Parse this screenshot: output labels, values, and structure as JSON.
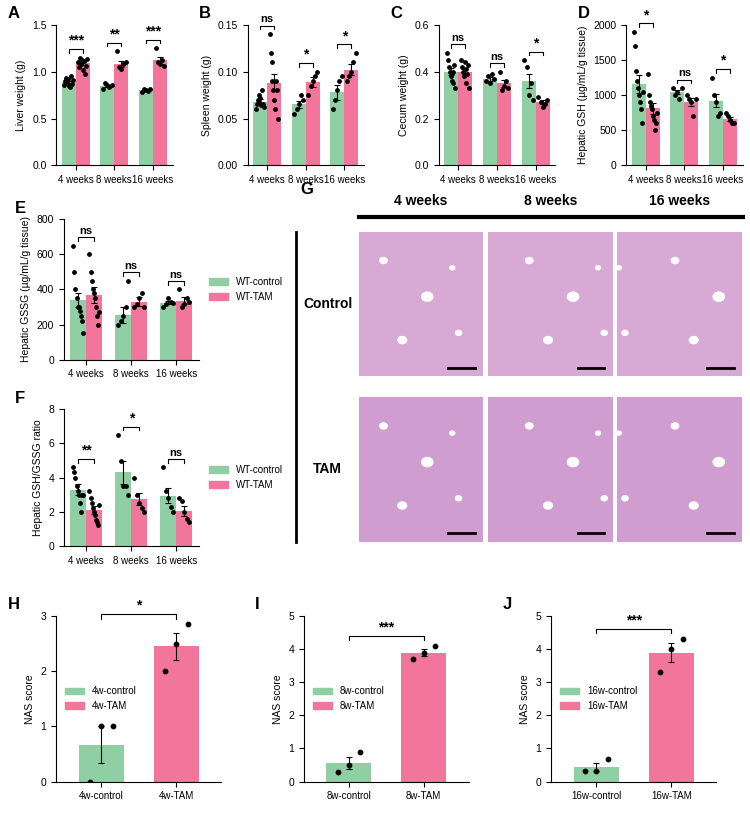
{
  "chart_data": [
    {
      "type": "bar",
      "title": "A",
      "y_label": "Liver weight (g)",
      "categories": [
        "4 weeks",
        "8 weeks",
        "16 weeks"
      ],
      "ylim": [
        0,
        1.5
      ],
      "yticks": [
        {
          "value": 0,
          "label": "0.0"
        },
        0.5,
        {
          "value": 1,
          "label": "1.0"
        },
        1.5
      ],
      "significance": [
        "***",
        "**",
        "***"
      ],
      "series": [
        {
          "color": "#8fcfa3",
          "values": [
            0.89,
            0.85,
            0.8
          ],
          "errors": [
            0.012,
            0.011,
            0.008
          ],
          "points": [
            [
              0.86,
              0.9,
              0.93,
              0.88,
              0.92,
              0.85,
              0.84,
              0.95,
              0.87,
              0.91
            ],
            [
              0.82,
              0.88,
              0.86,
              0.84,
              0.86
            ],
            [
              0.78,
              0.82,
              0.8,
              0.79,
              0.81
            ]
          ]
        },
        {
          "color": "#f2769c",
          "values": [
            1.09,
            1.08,
            1.12
          ],
          "errors": [
            0.015,
            0.035,
            0.035
          ],
          "points": [
            [
              1.1,
              1.05,
              1.15,
              1.08,
              1.12,
              1.02,
              1.11,
              0.98,
              1.06,
              1.13
            ],
            [
              1.22,
              1.05,
              1.03,
              1.08,
              1.1
            ],
            [
              1.25,
              1.1,
              1.08,
              1.12,
              1.06
            ]
          ]
        }
      ]
    },
    {
      "type": "bar",
      "title": "B",
      "y_label": "Spleen weight (g)",
      "categories": [
        "4 weeks",
        "8 weeks",
        "16 weeks"
      ],
      "ylim": [
        0,
        0.15
      ],
      "yticks": [
        {
          "value": 0,
          "label": "0.00"
        },
        0.05,
        {
          "value": 0.1,
          "label": "0.10"
        },
        0.15
      ],
      "significance": [
        "ns",
        "*",
        "*"
      ],
      "series": [
        {
          "color": "#8fcfa3",
          "values": [
            0.068,
            0.065,
            0.078
          ],
          "errors": [
            0.003,
            0.004,
            0.008
          ],
          "points": [
            [
              0.06,
              0.065,
              0.07,
              0.075,
              0.068,
              0.072,
              0.064,
              0.08,
              0.066,
              0.062
            ],
            [
              0.055,
              0.06,
              0.065,
              0.075,
              0.07
            ],
            [
              0.06,
              0.07,
              0.08,
              0.09,
              0.095
            ]
          ]
        },
        {
          "color": "#f2769c",
          "values": [
            0.088,
            0.089,
            0.102
          ],
          "errors": [
            0.009,
            0.005,
            0.006
          ],
          "points": [
            [
              0.14,
              0.12,
              0.11,
              0.09,
              0.08,
              0.07,
              0.06,
              0.09,
              0.08,
              0.05
            ],
            [
              0.075,
              0.085,
              0.09,
              0.095,
              0.1
            ],
            [
              0.09,
              0.095,
              0.1,
              0.11,
              0.12
            ]
          ]
        }
      ]
    },
    {
      "type": "bar",
      "title": "C",
      "y_label": "Cecum weight (g)",
      "categories": [
        "4 weeks",
        "8 weeks",
        "16 weeks"
      ],
      "ylim": [
        0,
        0.6
      ],
      "yticks": [
        {
          "value": 0,
          "label": "0.0"
        },
        0.2,
        0.4,
        0.6
      ],
      "significance": [
        "ns",
        "ns",
        "*"
      ],
      "series": [
        {
          "color": "#8fcfa3",
          "values": [
            0.4,
            0.37,
            0.36
          ],
          "errors": [
            0.015,
            0.008,
            0.03
          ],
          "points": [
            [
              0.48,
              0.45,
              0.42,
              0.4,
              0.38,
              0.36,
              0.35,
              0.4,
              0.43,
              0.33
            ],
            [
              0.36,
              0.38,
              0.35,
              0.39,
              0.37
            ],
            [
              0.45,
              0.42,
              0.3,
              0.35,
              0.28
            ]
          ]
        },
        {
          "color": "#f2769c",
          "values": [
            0.4,
            0.35,
            0.27
          ],
          "errors": [
            0.013,
            0.015,
            0.008
          ],
          "points": [
            [
              0.45,
              0.42,
              0.4,
              0.38,
              0.44,
              0.35,
              0.41,
              0.39,
              0.43,
              0.33
            ],
            [
              0.4,
              0.32,
              0.34,
              0.36,
              0.33
            ],
            [
              0.29,
              0.27,
              0.25,
              0.26,
              0.28
            ]
          ]
        }
      ]
    },
    {
      "type": "bar",
      "title": "D",
      "y_label": "Hepatic GSH (µg/mL/g tissue)",
      "categories": [
        "4 weeks",
        "8 weeks",
        "16 weeks"
      ],
      "ylim": [
        0,
        2000
      ],
      "yticks": [
        0,
        500,
        1000,
        1500,
        2000
      ],
      "significance": [
        "*",
        "ns",
        "*"
      ],
      "series": [
        {
          "color": "#8fcfa3",
          "values": [
            1160,
            1040,
            920
          ],
          "errors": [
            130,
            30,
            95
          ],
          "points": [
            [
              1900,
              1700,
              1350,
              1200,
              1100,
              1000,
              900,
              800,
              600,
              1050
            ],
            [
              1100,
              1000,
              1050,
              950,
              1100
            ],
            [
              1250,
              1000,
              900,
              700,
              750
            ]
          ]
        },
        {
          "color": "#f2769c",
          "values": [
            810,
            900,
            660
          ],
          "errors": [
            80,
            55,
            35
          ],
          "points": [
            [
              1300,
              1000,
              900,
              850,
              800,
              700,
              650,
              500,
              600,
              750
            ],
            [
              1000,
              950,
              900,
              700,
              950
            ],
            [
              750,
              700,
              650,
              600,
              600
            ]
          ]
        }
      ]
    },
    {
      "type": "bar",
      "title": "E",
      "y_label": "Hepatic GSSG (µg/mL/g tissue)",
      "categories": [
        "4 weeks",
        "8 weeks",
        "16 weeks"
      ],
      "ylim": [
        0,
        800
      ],
      "yticks": [
        0,
        200,
        400,
        600,
        800
      ],
      "significance": [
        "ns",
        "ns",
        "ns"
      ],
      "legend": "right",
      "series": [
        {
          "name": "WT-control",
          "color": "#8fcfa3",
          "values": [
            340,
            255,
            325
          ],
          "errors": [
            40,
            45,
            10
          ],
          "points": [
            [
              650,
              500,
              400,
              350,
              300,
              300,
              280,
              250,
              220,
              150
            ],
            [
              200,
              220,
              250,
              300,
              450
            ],
            [
              300,
              320,
              350,
              330,
              325
            ]
          ]
        },
        {
          "name": "WT-TAM",
          "color": "#f2769c",
          "values": [
            370,
            330,
            335
          ],
          "errors": [
            45,
            25,
            20
          ],
          "points": [
            [
              600,
              500,
              450,
              400,
              380,
              350,
              300,
              250,
              200,
              270
            ],
            [
              300,
              320,
              350,
              380,
              300
            ],
            [
              400,
              300,
              320,
              350,
              330
            ]
          ]
        }
      ]
    },
    {
      "type": "bar",
      "title": "F",
      "y_label": "Hepatic GSH/GSSG ratio",
      "categories": [
        "4 weeks",
        "8 weeks",
        "16 weeks"
      ],
      "ylim": [
        0,
        8
      ],
      "yticks": [
        0,
        2,
        4,
        6,
        8
      ],
      "significance": [
        "**",
        "*",
        "ns"
      ],
      "legend": "right",
      "series": [
        {
          "name": "WT-control",
          "color": "#8fcfa3",
          "values": [
            3.3,
            4.3,
            2.95
          ],
          "errors": [
            0.3,
            0.65,
            0.45
          ],
          "points": [
            [
              4.6,
              4.3,
              4.0,
              3.5,
              3.2,
              3.0,
              2.5,
              2.0,
              3.0,
              3.0
            ],
            [
              6.5,
              5.0,
              3.5,
              3.5,
              3.0
            ],
            [
              4.6,
              3.2,
              2.8,
              2.3,
              2.0
            ]
          ]
        },
        {
          "name": "WT-TAM",
          "color": "#f2769c",
          "values": [
            2.1,
            2.75,
            2.05
          ],
          "errors": [
            0.25,
            0.35,
            0.3
          ],
          "points": [
            [
              3.2,
              2.8,
              2.5,
              2.2,
              2.0,
              1.8,
              1.5,
              1.4,
              1.2,
              2.4
            ],
            [
              4.0,
              3.0,
              2.5,
              2.2,
              2.0
            ],
            [
              2.8,
              2.6,
              2.0,
              1.6,
              1.4
            ]
          ]
        }
      ]
    },
    {
      "type": "bar",
      "title": "H",
      "y_label": "NAS score",
      "categories": [
        "4w-control",
        "4w-TAM"
      ],
      "colors": [
        "#8fcfa3",
        "#f2769c"
      ],
      "values": [
        0.67,
        2.45
      ],
      "errors": [
        0.33,
        0.25
      ],
      "points": [
        [
          0,
          1,
          1
        ],
        [
          2.0,
          2.5,
          2.85
        ]
      ],
      "ylim": [
        0,
        3
      ],
      "yticks": [
        0,
        1,
        2,
        3
      ],
      "significance": [
        "*"
      ],
      "legend": "center left"
    },
    {
      "type": "bar",
      "title": "I",
      "y_label": "NAS score",
      "categories": [
        "8w-control",
        "8w-TAM"
      ],
      "colors": [
        "#8fcfa3",
        "#f2769c"
      ],
      "values": [
        0.55,
        3.9
      ],
      "errors": [
        0.18,
        0.1
      ],
      "points": [
        [
          0.3,
          0.5,
          0.9
        ],
        [
          3.7,
          3.9,
          4.1
        ]
      ],
      "ylim": [
        0,
        5
      ],
      "yticks": [
        0,
        1,
        2,
        3,
        4,
        5
      ],
      "significance": [
        "***"
      ],
      "legend": "center left"
    },
    {
      "type": "bar",
      "title": "J",
      "y_label": "NAS score",
      "categories": [
        "16w-control",
        "16w-TAM"
      ],
      "colors": [
        "#8fcfa3",
        "#f2769c"
      ],
      "values": [
        0.45,
        3.9
      ],
      "errors": [
        0.12,
        0.3
      ],
      "points": [
        [
          0.33,
          0.33,
          0.67
        ],
        [
          3.3,
          4.0,
          4.3
        ]
      ],
      "ylim": [
        0,
        5
      ],
      "yticks": [
        0,
        1,
        2,
        3,
        4,
        5
      ],
      "significance": [
        "***"
      ],
      "legend": "center left"
    }
  ],
  "image_panel": {
    "title": "G",
    "columns": [
      "4 weeks",
      "8 weeks",
      "16 weeks"
    ],
    "rows": [
      "Control",
      "TAM"
    ]
  }
}
